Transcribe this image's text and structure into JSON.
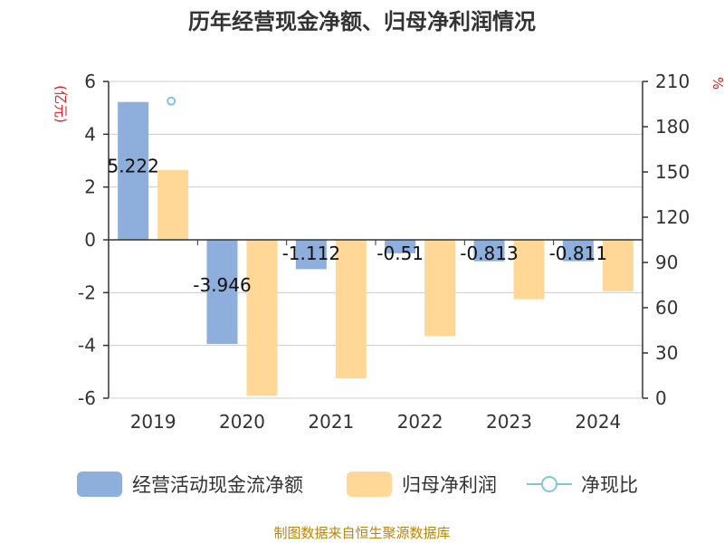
{
  "title": "历年经营现金净额、归母净利润情况",
  "source": "制图数据来自恒生聚源数据库",
  "chart_data": {
    "type": "bar",
    "categories": [
      "2019",
      "2020",
      "2021",
      "2022",
      "2023",
      "2024"
    ],
    "series": [
      {
        "name": "经营活动现金流净额",
        "type": "bar",
        "axis": "left",
        "color": "#8eaedb",
        "values": [
          5.222,
          -3.946,
          -1.112,
          -0.51,
          -0.813,
          -0.811
        ],
        "labels": [
          "5.222",
          "-3.946",
          "-1.112",
          "-0.51",
          "-0.813",
          "-0.811"
        ]
      },
      {
        "name": "归母净利润",
        "type": "bar",
        "axis": "left",
        "color": "#ffd897",
        "values": [
          2.65,
          -5.9,
          -5.25,
          -3.65,
          -2.25,
          -1.95
        ]
      },
      {
        "name": "净现比",
        "type": "line",
        "axis": "right",
        "color": "#7ec8d8",
        "values": [
          197,
          null,
          null,
          null,
          null,
          null
        ]
      }
    ],
    "y_left": {
      "unit": "(亿元)",
      "lim": [
        -6,
        6
      ],
      "ticks": [
        "6",
        "4",
        "2",
        "0",
        "-2",
        "-4",
        "-6"
      ]
    },
    "y_right": {
      "unit": "%",
      "lim": [
        0,
        210
      ],
      "ticks": [
        "210",
        "180",
        "150",
        "120",
        "90",
        "60",
        "30",
        "0"
      ]
    },
    "grid": true,
    "legend": "bottom"
  }
}
